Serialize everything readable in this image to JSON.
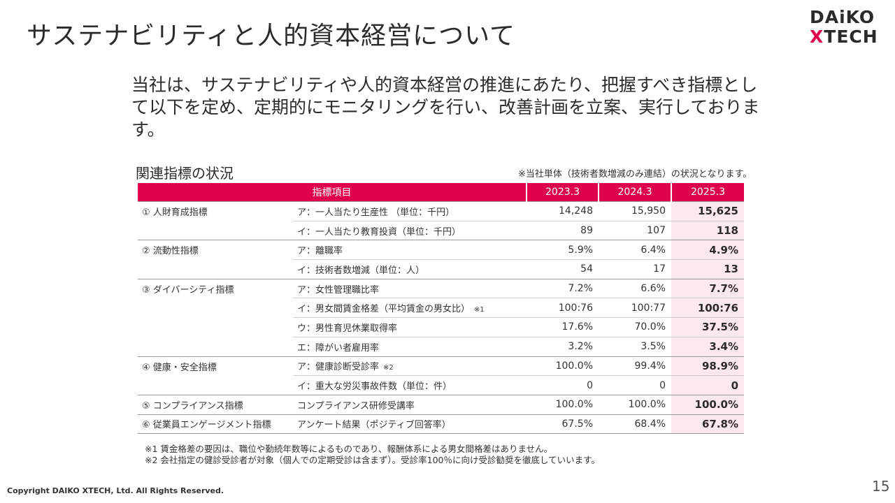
{
  "title": "サステナビリティと人的資本経営について",
  "logo": {
    "line1": "DAiKO",
    "line2_x": "X",
    "line2_rest": "TECH"
  },
  "intro": "当社は、サステナビリティや人的資本経営の推進にあたり、把握すべき指標として以下を定め、定期的にモニタリングを行い、改善計画を立案、実行しております。",
  "table_heading": "関連指標の状況",
  "table_note": "※当社単体（技術者数増減のみ連結）の状況となります。",
  "table": {
    "header": {
      "item": "指標項目",
      "years": [
        "2023.3",
        "2024.3",
        "2025.3"
      ]
    },
    "highlight_color": "#fde8ef",
    "header_color": "#e0004e",
    "rows": [
      {
        "category": "① 人財育成指標",
        "item": "ア：一人当たり生産性 （単位：千円）",
        "annotation": "",
        "values": [
          "14,248",
          "15,950",
          "15,625"
        ]
      },
      {
        "category": "",
        "item": "イ：一人当たり教育投資（単位：千円）",
        "annotation": "",
        "values": [
          "89",
          "107",
          "118"
        ]
      },
      {
        "category": "② 流動性指標",
        "item": "ア：離職率",
        "annotation": "",
        "values": [
          "5.9%",
          "6.4%",
          "4.9%"
        ]
      },
      {
        "category": "",
        "item": "イ：技術者数増減（単位：人）",
        "annotation": "",
        "values": [
          "54",
          "17",
          "13"
        ]
      },
      {
        "category": "③ ダイバーシティ指標",
        "item": "ア：女性管理職比率",
        "annotation": "",
        "values": [
          "7.2%",
          "6.6%",
          "7.7%"
        ]
      },
      {
        "category": "",
        "item": "イ：男女間賃金格差（平均賃金の男女比）",
        "annotation": "※1",
        "values": [
          "100:76",
          "100:77",
          "100:76"
        ]
      },
      {
        "category": "",
        "item": "ウ：男性育児休業取得率",
        "annotation": "",
        "values": [
          "17.6%",
          "70.0%",
          "37.5%"
        ]
      },
      {
        "category": "",
        "item": "エ：障がい者雇用率",
        "annotation": "",
        "values": [
          "3.2%",
          "3.5%",
          "3.4%"
        ]
      },
      {
        "category": "④ 健康・安全指標",
        "item": "ア：健康診断受診率",
        "annotation": "※2",
        "values": [
          "100.0%",
          "99.4%",
          "98.9%"
        ]
      },
      {
        "category": "",
        "item": "イ：重大な労災事故件数（単位：件）",
        "annotation": "",
        "values": [
          "0",
          "0",
          "0"
        ]
      },
      {
        "category": "⑤ コンプライアンス指標",
        "item": "コンプライアンス研修受講率",
        "annotation": "",
        "values": [
          "100.0%",
          "100.0%",
          "100.0%"
        ]
      },
      {
        "category": "⑥ 従業員エンゲージメント指標",
        "item": "アンケート結果（ポジティブ回答率）",
        "annotation": "",
        "values": [
          "67.5%",
          "68.4%",
          "67.8%"
        ]
      }
    ]
  },
  "footnotes": [
    "※1 賃金格差の要因は、職位や勤続年数等によるものであり、報酬体系による男女間格差はありません。",
    "※2 会社指定の健診受診者が対象（個人での定期受診は含まず）。受診率100％に向け受診勧奨を徹底していいます。"
  ],
  "copyright": "Copyright DAIKO XTECH, Ltd. All Rights Reserved.",
  "page_number": "15"
}
